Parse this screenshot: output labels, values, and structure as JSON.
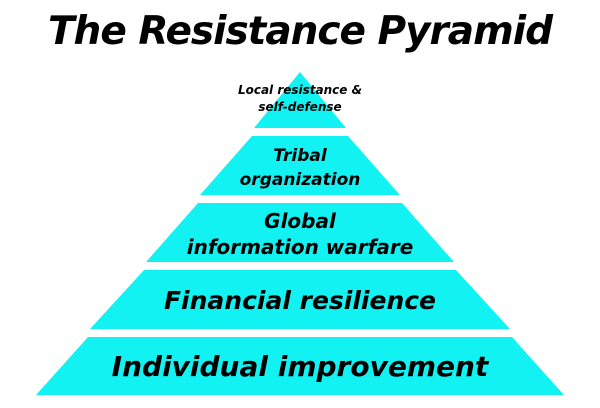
{
  "title": "The Resistance Pyramid",
  "colors": {
    "tier_fill": "#12f2f2",
    "text": "#000000",
    "background": "#ffffff"
  },
  "tiers": [
    {
      "lines": [
        "Local resistance &",
        "self-defense"
      ]
    },
    {
      "lines": [
        "Tribal",
        "organization"
      ]
    },
    {
      "lines": [
        "Global",
        "information warfare"
      ]
    },
    {
      "lines": [
        "Financial resilience"
      ]
    },
    {
      "lines": [
        "Individual improvement"
      ]
    }
  ]
}
